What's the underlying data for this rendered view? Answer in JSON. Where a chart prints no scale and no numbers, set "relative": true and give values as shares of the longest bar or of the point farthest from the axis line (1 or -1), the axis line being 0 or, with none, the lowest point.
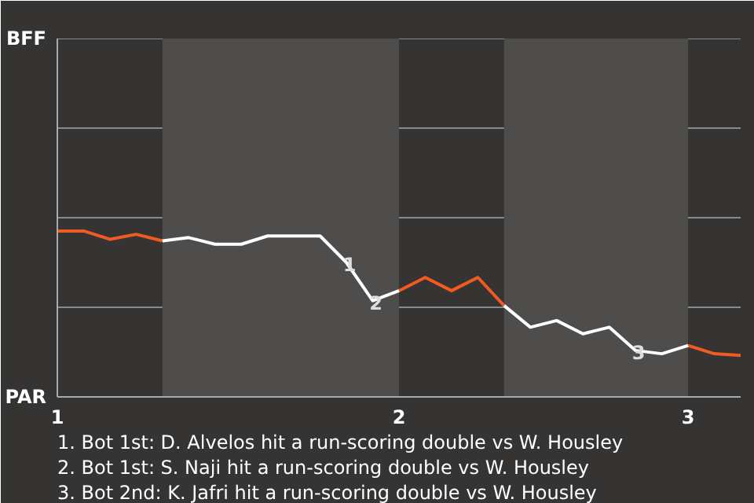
{
  "chart_data": {
    "type": "line",
    "relative": true,
    "categories": [
      "1",
      null,
      null,
      null,
      null,
      null,
      null,
      null,
      null,
      null,
      null,
      null,
      null,
      "2",
      null,
      null,
      null,
      null,
      null,
      null,
      null,
      null,
      null,
      null,
      "3",
      null,
      null
    ],
    "series": [
      {
        "color": "#f15a22",
        "values": [
          1,
          1,
          0.95,
          0.98,
          0.94,
          null,
          null,
          null,
          null,
          null,
          null,
          null,
          null,
          0.64,
          0.72,
          0.64,
          0.72,
          0.55,
          null,
          null,
          null,
          null,
          null,
          null,
          0.31,
          0.26,
          0.25
        ]
      },
      {
        "color": "#ffffff",
        "values": [
          null,
          null,
          null,
          null,
          0.94,
          0.96,
          0.92,
          0.92,
          0.97,
          0.97,
          0.97,
          0.81,
          0.58,
          0.64,
          null,
          null,
          null,
          0.55,
          0.42,
          0.46,
          0.38,
          0.42,
          0.28,
          0.26,
          0.31,
          null,
          null
        ]
      }
    ],
    "ref_lines": [
      {
        "axis": "y",
        "value": 0.54,
        "color": "#8a8a8a"
      },
      {
        "axis": "y",
        "value": 1.08,
        "color": "#8a8a8a"
      },
      {
        "axis": "y",
        "value": 1.62,
        "color": "#8a8a8a"
      },
      {
        "axis": "y",
        "value": 2.16,
        "color": "#8a8a8a"
      }
    ],
    "annotations": [
      "BFF",
      "PAR",
      {
        "text": "1",
        "y": 0.81
      },
      {
        "text": "2",
        "y": 0.58
      },
      {
        "text": "3",
        "y": 0.28
      },
      "1. Bot 1st: D. Alvelos hit a run-scoring double vs W. Housley",
      "2. Bot 1st: S. Naji hit a run-scoring double vs W. Housley",
      "3. Bot 2nd: K. Jafri hit a run-scoring double vs W. Housley"
    ]
  }
}
